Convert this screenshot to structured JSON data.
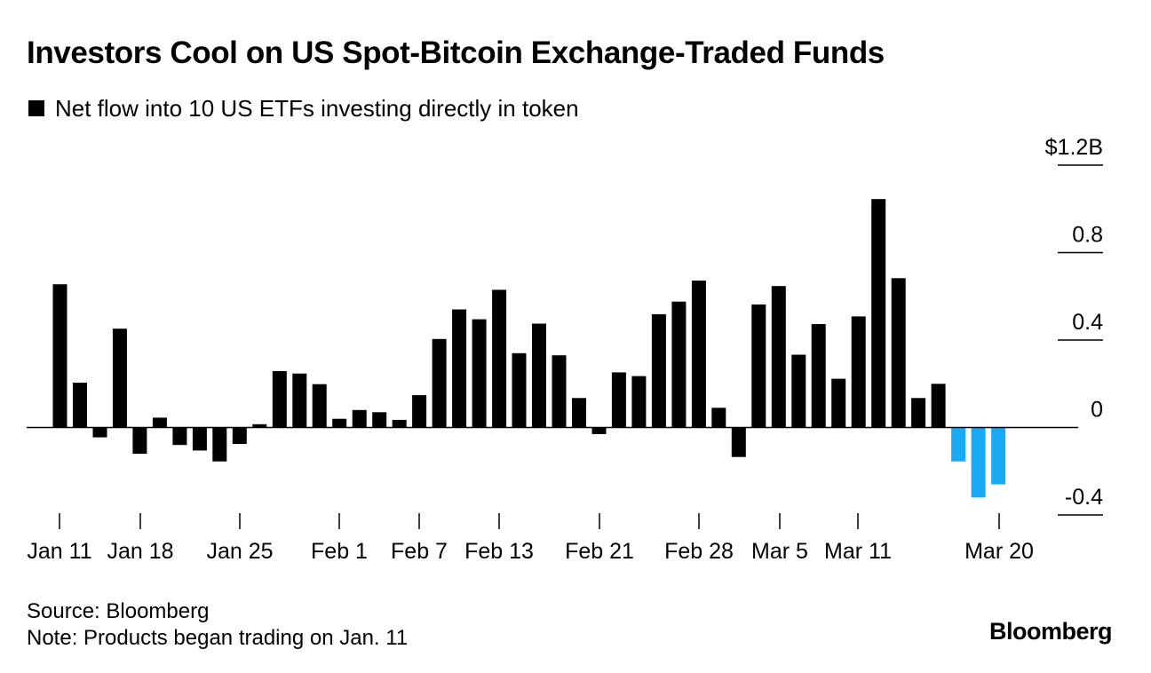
{
  "title": "Investors Cool on US Spot-Bitcoin Exchange-Traded Funds",
  "legend": {
    "label": "Net flow into 10 US ETFs investing directly in token",
    "color": "#000000"
  },
  "footer": {
    "source": "Source: Bloomberg",
    "note": "Note: Products began trading on Jan. 11"
  },
  "logo": "Bloomberg",
  "chart_data": {
    "type": "bar",
    "ylabel": "",
    "ylim": [
      -0.4,
      1.2
    ],
    "yticks": [
      {
        "value": 1.2,
        "label": "$1.2B"
      },
      {
        "value": 0.8,
        "label": "0.8"
      },
      {
        "value": 0.4,
        "label": "0.4"
      },
      {
        "value": 0,
        "label": "0"
      },
      {
        "value": -0.4,
        "label": "-0.4"
      }
    ],
    "xtick_labels": [
      "Jan 11",
      "Jan 18",
      "Jan 25",
      "Feb 1",
      "Feb 7",
      "Feb 13",
      "Feb 21",
      "Feb 28",
      "Mar 5",
      "Mar 11",
      "Mar 20"
    ],
    "colors": {
      "positive": "#000000",
      "recent_outflow": "#1aaaf5"
    },
    "series": [
      {
        "values": [
          0.655,
          0.205,
          -0.045,
          0.452,
          -0.12,
          0.045,
          -0.08,
          -0.105,
          -0.155,
          -0.075,
          0.015,
          0.258,
          0.247,
          0.198,
          0.04,
          0.08,
          0.07,
          0.035,
          0.148,
          0.405,
          0.54,
          0.495,
          0.63,
          0.34,
          0.475,
          0.33,
          0.135,
          -0.03,
          0.252,
          0.235,
          0.518,
          0.576,
          0.672,
          0.09,
          -0.135,
          0.563,
          0.647,
          0.333,
          0.473,
          0.223,
          0.508,
          1.045,
          0.683,
          0.135,
          0.2,
          -0.155,
          -0.32,
          -0.26
        ],
        "highlight": [
          45,
          46,
          47
        ]
      }
    ]
  }
}
